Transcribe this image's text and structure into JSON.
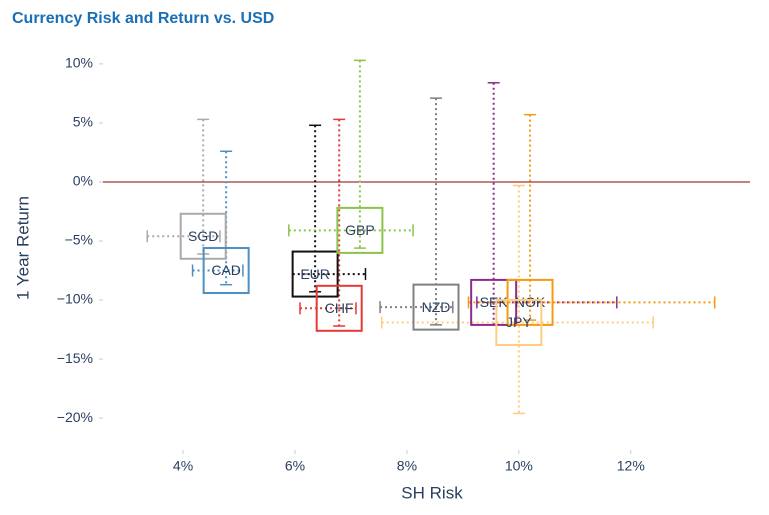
{
  "chart_data": {
    "type": "scatter",
    "title": "Currency Risk and Return vs. USD",
    "x_label": "SH Risk",
    "y_label": "1 Year Return",
    "labels": [
      "SGD",
      "CAD",
      "EUR",
      "CHF",
      "GBP",
      "NZD",
      "SEK",
      "NOK",
      "JPY"
    ],
    "colors": [
      "#aaaaaa",
      "#4a90c4",
      "#111111",
      "#e53935",
      "#8bc34a",
      "#808080",
      "#8e2a8e",
      "#f39c12",
      "#ffcc80"
    ],
    "x": [
      4.36,
      4.77,
      6.36,
      6.79,
      7.16,
      8.52,
      9.55,
      10.2,
      10.0
    ],
    "values": [
      -4.6,
      -7.5,
      -7.8,
      -10.7,
      -4.1,
      -10.6,
      -10.2,
      -10.2,
      -11.9
    ],
    "x_err_minus": [
      1.0,
      0.6,
      0.4,
      0.7,
      1.27,
      1.0,
      0.3,
      1.1,
      2.45
    ],
    "x_err_plus": [
      0.3,
      0.3,
      0.9,
      0.3,
      0.95,
      0.3,
      2.2,
      3.3,
      2.4
    ],
    "y_err_minus": [
      1.5,
      1.2,
      1.5,
      1.5,
      1.5,
      1.5,
      1.9,
      1.5,
      7.7
    ],
    "y_err_plus": [
      9.9,
      10.1,
      12.6,
      16.0,
      14.4,
      17.7,
      18.6,
      15.9,
      11.6
    ],
    "zero_line_color": "#8b0000",
    "xlim": [
      2.57,
      14.13
    ],
    "ylim": [
      -22.7,
      11.6
    ],
    "xticks": [
      {
        "value": 4,
        "label": "4%"
      },
      {
        "value": 6,
        "label": "6%"
      },
      {
        "value": 8,
        "label": "8%"
      },
      {
        "value": 10,
        "label": "10%"
      },
      {
        "value": 12,
        "label": "12%"
      }
    ],
    "yticks": [
      {
        "value": 10,
        "label": "10%"
      },
      {
        "value": 5,
        "label": "5%"
      },
      {
        "value": 0,
        "label": "0%"
      },
      {
        "value": -5,
        "label": "−5%"
      },
      {
        "value": -10,
        "label": "−10%"
      },
      {
        "value": -15,
        "label": "−15%"
      },
      {
        "value": -20,
        "label": "−20%"
      }
    ]
  }
}
